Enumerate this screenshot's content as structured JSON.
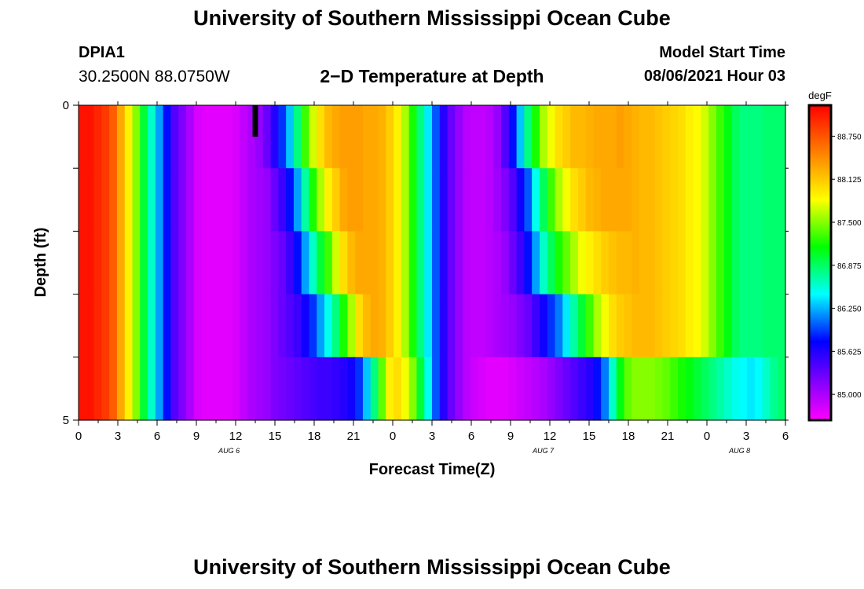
{
  "header": {
    "title": "University of Southern Mississippi Ocean Cube",
    "station_id": "DPIA1",
    "location": "30.2500N  88.0750W",
    "chart_title": "2−D Temperature at Depth",
    "model_label": "Model Start Time",
    "model_time": "08/06/2021 Hour 03"
  },
  "footer": {
    "title": "University of Southern Mississippi Ocean Cube"
  },
  "chart_data": {
    "type": "heatmap",
    "title": "2−D Temperature at Depth",
    "xlabel": "Forecast Time(Z)",
    "ylabel": "Depth (ft)",
    "x_tick_labels": [
      "0",
      "3",
      "6",
      "9",
      "12",
      "15",
      "18",
      "21",
      "0",
      "3",
      "6",
      "9",
      "12",
      "15",
      "18",
      "21",
      "0",
      "3",
      "6"
    ],
    "date_labels": [
      {
        "text": "AUG 6",
        "hour_index": 11.5
      },
      {
        "text": "AUG 7",
        "hour_index": 35.5
      },
      {
        "text": "AUG 8",
        "hour_index": 50.5
      }
    ],
    "x_range_hours": [
      0,
      54
    ],
    "y_tick_labels": [
      "0",
      "5"
    ],
    "ylim": [
      0,
      5
    ],
    "depth_levels": [
      0.5,
      1.5,
      2.5,
      3.5,
      4.5
    ],
    "colorbar": {
      "unit": "degF",
      "min": 84.625,
      "max": 89.2,
      "tick_values": [
        85.0,
        85.625,
        86.25,
        86.875,
        87.5,
        88.125,
        88.75
      ],
      "tick_labels": [
        "85.000",
        "85.625",
        "86.250",
        "86.875",
        "87.500",
        "88.125",
        "88.750"
      ]
    },
    "temperature_degF": [
      [
        89.1,
        89.1,
        89.0,
        88.9,
        88.7,
        88.3,
        87.9,
        87.5,
        87.0,
        86.6,
        86.2,
        85.8,
        85.4,
        85.2,
        85.0,
        84.8,
        84.75,
        84.75,
        84.75,
        84.75,
        84.8,
        84.9,
        85.0,
        85.1,
        85.3,
        85.6,
        85.9,
        86.3,
        86.8,
        87.3,
        87.7,
        88.0,
        88.2,
        88.3,
        88.35,
        88.35,
        88.35,
        88.3,
        88.3,
        88.25,
        88.1,
        87.9,
        87.6,
        87.2,
        86.8,
        86.4,
        86.0,
        85.6,
        85.3,
        85.1,
        84.95,
        84.9,
        84.9,
        84.95,
        85.1,
        85.4,
        85.8,
        86.3,
        86.8,
        87.2,
        87.6,
        87.8,
        88.0,
        88.1,
        88.2,
        88.2,
        88.25,
        88.3,
        88.3,
        88.3,
        88.35,
        88.3,
        88.25,
        88.2,
        88.2,
        88.15,
        88.1,
        88.05,
        88.0,
        87.9,
        87.85,
        87.7,
        87.5,
        87.3,
        87.1,
        86.9,
        86.8,
        86.8,
        86.8,
        86.85,
        86.85,
        86.85
      ],
      [
        89.1,
        89.1,
        89.0,
        88.9,
        88.7,
        88.3,
        87.9,
        87.5,
        87.0,
        86.6,
        86.2,
        85.8,
        85.4,
        85.2,
        85.0,
        84.8,
        84.75,
        84.75,
        84.75,
        84.75,
        84.8,
        84.9,
        85.0,
        85.05,
        85.1,
        85.3,
        85.5,
        85.8,
        86.2,
        86.7,
        87.2,
        87.6,
        87.9,
        88.1,
        88.3,
        88.35,
        88.35,
        88.3,
        88.3,
        88.25,
        88.1,
        87.9,
        87.6,
        87.2,
        86.8,
        86.4,
        86.0,
        85.6,
        85.3,
        85.1,
        84.95,
        84.9,
        84.9,
        84.95,
        85.05,
        85.2,
        85.4,
        85.7,
        86.0,
        86.5,
        86.9,
        87.3,
        87.6,
        87.8,
        88.0,
        88.1,
        88.2,
        88.25,
        88.3,
        88.3,
        88.3,
        88.3,
        88.25,
        88.2,
        88.2,
        88.15,
        88.1,
        88.05,
        88.0,
        87.9,
        87.85,
        87.7,
        87.5,
        87.3,
        87.1,
        86.9,
        86.8,
        86.8,
        86.8,
        86.85,
        86.85,
        86.85
      ],
      [
        89.1,
        89.1,
        89.0,
        88.9,
        88.7,
        88.3,
        87.9,
        87.5,
        87.0,
        86.6,
        86.2,
        85.8,
        85.4,
        85.2,
        85.0,
        84.8,
        84.75,
        84.75,
        84.75,
        84.75,
        84.8,
        84.9,
        85.0,
        85.05,
        85.1,
        85.2,
        85.3,
        85.5,
        85.8,
        86.2,
        86.6,
        87.0,
        87.3,
        87.7,
        88.0,
        88.2,
        88.3,
        88.3,
        88.3,
        88.25,
        88.1,
        87.9,
        87.6,
        87.2,
        86.8,
        86.4,
        86.0,
        85.6,
        85.3,
        85.1,
        84.95,
        84.9,
        84.9,
        84.95,
        85.0,
        85.1,
        85.3,
        85.5,
        85.8,
        86.2,
        86.6,
        86.9,
        87.2,
        87.4,
        87.6,
        87.8,
        87.9,
        88.0,
        88.1,
        88.15,
        88.2,
        88.2,
        88.25,
        88.2,
        88.2,
        88.15,
        88.1,
        88.05,
        88.0,
        87.9,
        87.85,
        87.7,
        87.5,
        87.3,
        87.1,
        86.9,
        86.8,
        86.8,
        86.8,
        86.85,
        86.85,
        86.85
      ],
      [
        89.1,
        89.1,
        89.0,
        88.9,
        88.7,
        88.3,
        87.9,
        87.5,
        87.0,
        86.6,
        86.2,
        85.8,
        85.4,
        85.2,
        85.0,
        84.8,
        84.75,
        84.75,
        84.75,
        84.75,
        84.8,
        84.9,
        85.0,
        85.05,
        85.1,
        85.2,
        85.3,
        85.4,
        85.5,
        85.7,
        85.9,
        86.2,
        86.5,
        86.8,
        87.2,
        87.6,
        88.0,
        88.2,
        88.3,
        88.25,
        88.1,
        87.9,
        87.6,
        87.2,
        86.8,
        86.4,
        86.0,
        85.6,
        85.3,
        85.1,
        84.95,
        84.9,
        84.9,
        84.95,
        85.0,
        85.05,
        85.1,
        85.2,
        85.3,
        85.5,
        85.7,
        85.9,
        86.1,
        86.4,
        86.7,
        87.0,
        87.3,
        87.6,
        87.8,
        88.0,
        88.1,
        88.15,
        88.2,
        88.2,
        88.2,
        88.15,
        88.1,
        88.05,
        88.0,
        87.9,
        87.85,
        87.7,
        87.5,
        87.3,
        87.1,
        86.9,
        86.8,
        86.8,
        86.8,
        86.85,
        86.85,
        86.85
      ],
      [
        89.1,
        89.1,
        89.0,
        88.9,
        88.7,
        88.3,
        87.9,
        87.5,
        87.0,
        86.6,
        86.2,
        85.8,
        85.4,
        85.2,
        85.0,
        84.8,
        84.75,
        84.75,
        84.75,
        84.75,
        84.8,
        84.9,
        85.0,
        85.05,
        85.1,
        85.2,
        85.25,
        85.3,
        85.35,
        85.4,
        85.45,
        85.5,
        85.5,
        85.55,
        85.6,
        85.7,
        85.9,
        86.3,
        86.8,
        87.4,
        87.9,
        88.0,
        87.8,
        87.5,
        87.0,
        86.5,
        86.0,
        85.6,
        85.3,
        85.1,
        84.95,
        84.85,
        84.8,
        84.75,
        84.75,
        84.75,
        84.8,
        84.85,
        84.9,
        84.95,
        85.0,
        85.1,
        85.2,
        85.3,
        85.4,
        85.5,
        85.6,
        85.8,
        86.1,
        86.6,
        87.1,
        87.4,
        87.5,
        87.5,
        87.5,
        87.45,
        87.4,
        87.3,
        87.2,
        87.1,
        87.0,
        86.9,
        86.8,
        86.7,
        86.6,
        86.5,
        86.45,
        86.4,
        86.45,
        86.6,
        86.75,
        86.85
      ]
    ],
    "special_marks": [
      {
        "kind": "black-bar",
        "hour": 13.5,
        "depth_top": 0,
        "depth_bottom": 0.5
      }
    ]
  }
}
